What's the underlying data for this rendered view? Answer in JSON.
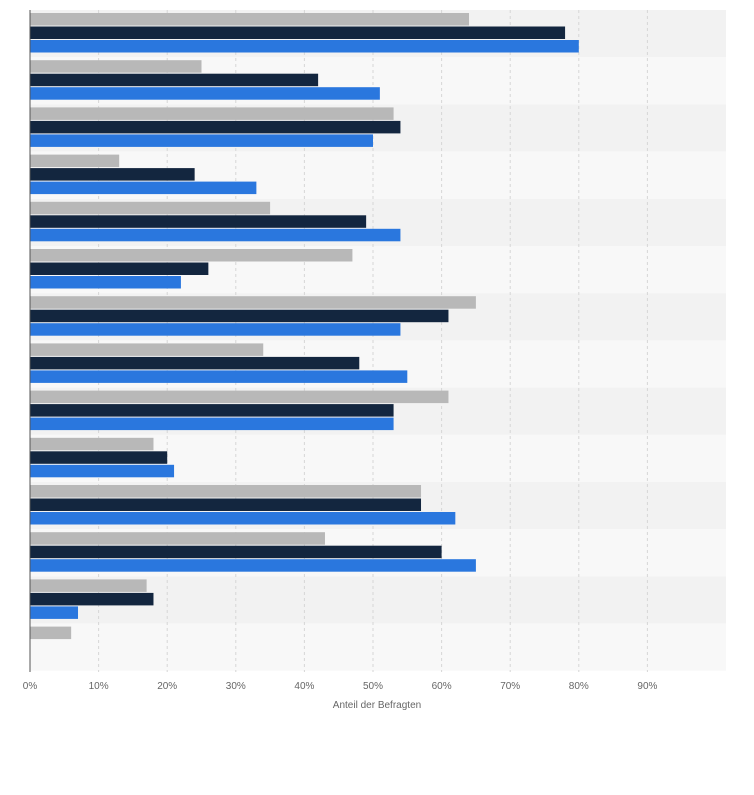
{
  "chart_data": {
    "type": "bar",
    "orientation": "horizontal",
    "xlabel": "Anteil der Befragten",
    "xlim": [
      0,
      90
    ],
    "xticks": [
      "0%",
      "10%",
      "20%",
      "30%",
      "40%",
      "50%",
      "60%",
      "70%",
      "80%",
      "90%"
    ],
    "grid": true,
    "legend": "none",
    "category_count": 14,
    "series": [
      {
        "color": "#b8b8b8",
        "values": [
          64,
          25,
          53,
          13,
          35,
          47,
          65,
          34,
          61,
          18,
          57,
          43,
          17,
          6
        ]
      },
      {
        "color": "#13263f",
        "values": [
          78,
          42,
          54,
          24,
          49,
          26,
          61,
          48,
          53,
          20,
          57,
          60,
          18,
          null
        ]
      },
      {
        "color": "#2a77de",
        "values": [
          80,
          51,
          50,
          33,
          54,
          22,
          54,
          55,
          53,
          21,
          62,
          65,
          7,
          null
        ]
      }
    ]
  }
}
